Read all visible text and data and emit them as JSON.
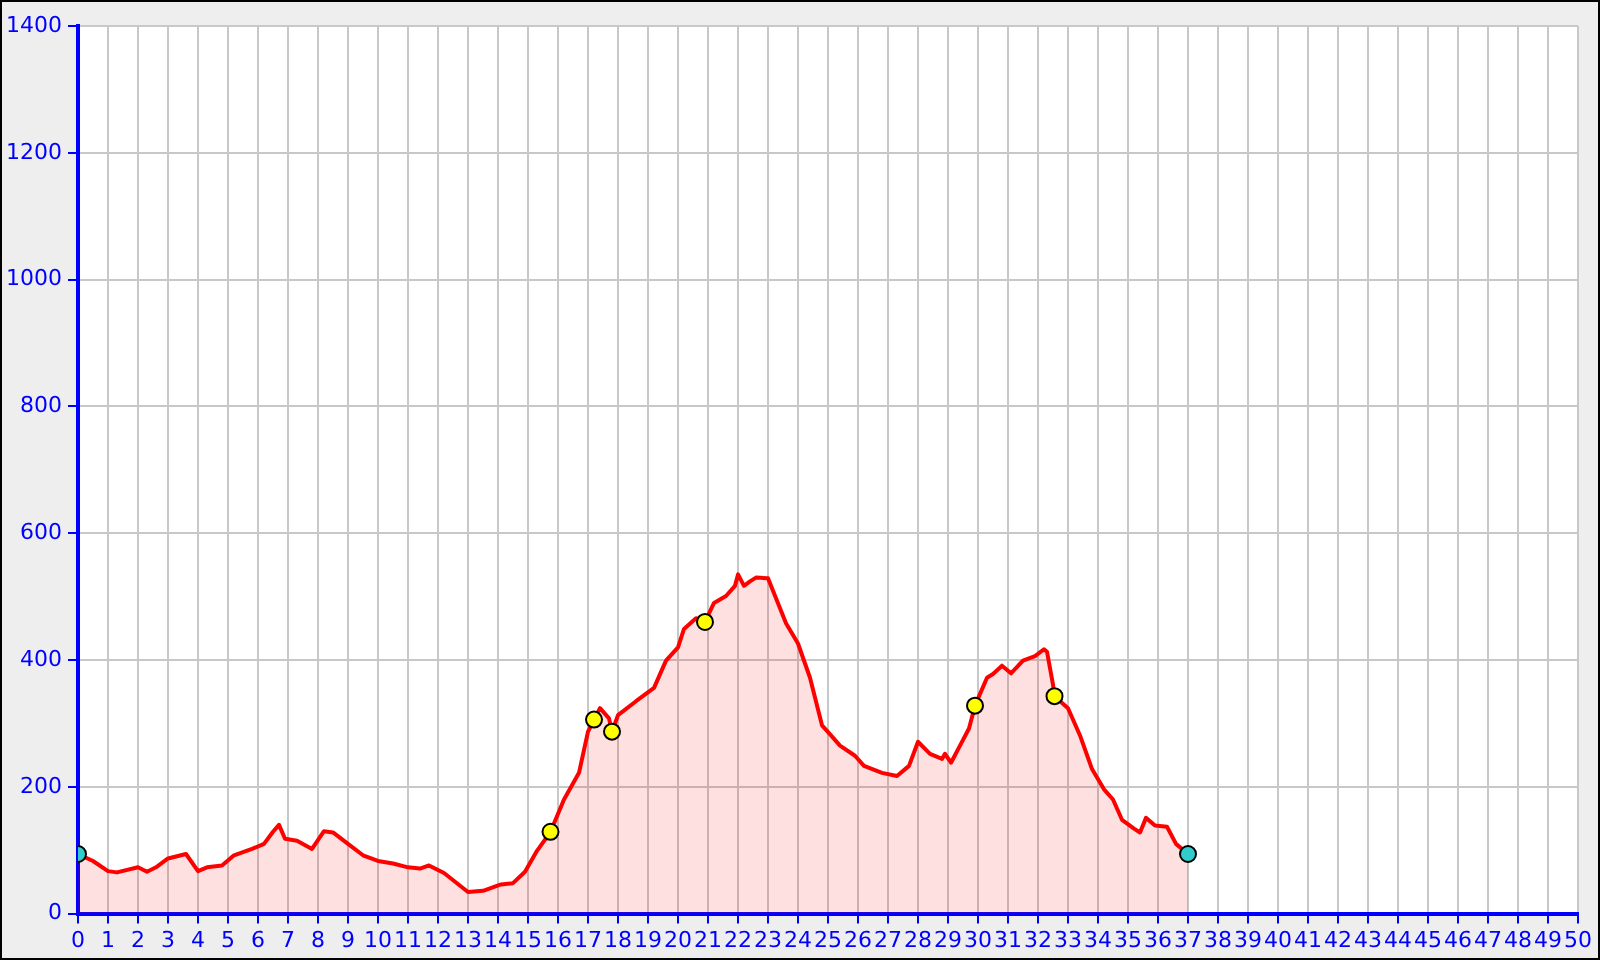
{
  "chart_data": {
    "type": "area",
    "xlim": [
      0,
      50
    ],
    "xticks": [
      0,
      1,
      2,
      3,
      4,
      5,
      6,
      7,
      8,
      9,
      10,
      11,
      12,
      13,
      14,
      15,
      16,
      17,
      18,
      19,
      20,
      21,
      22,
      23,
      24,
      25,
      26,
      27,
      28,
      29,
      30,
      31,
      32,
      33,
      34,
      35,
      36,
      37,
      38,
      39,
      40,
      41,
      42,
      43,
      44,
      45,
      46,
      47,
      48,
      49,
      50
    ],
    "ylim": [
      0,
      1400
    ],
    "yticks": [
      0,
      200,
      400,
      600,
      800,
      1000,
      1200,
      1400
    ],
    "grid": true,
    "legend": false,
    "series": [
      {
        "color": "#ff0000",
        "x": [
          0,
          0.5,
          1,
          1.3,
          2,
          2.3,
          2.6,
          3,
          3.6,
          4,
          4.3,
          4.8,
          5.2,
          5.8,
          6.2,
          6.5,
          6.7,
          6.9,
          7.3,
          7.8,
          8.2,
          8.5,
          9,
          9.5,
          10,
          10.5,
          11,
          11.4,
          11.7,
          12.2,
          12.6,
          13,
          13.5,
          14.1,
          14.5,
          14.9,
          15.3,
          15.75,
          16.2,
          16.7,
          17,
          17.2,
          17.4,
          17.7,
          17.8,
          18,
          18.6,
          19.2,
          19.6,
          20,
          20.2,
          20.6,
          20.9,
          21.2,
          21.6,
          21.9,
          22,
          22.2,
          22.4,
          22.6,
          23,
          23.6,
          24,
          24.4,
          24.8,
          25.1,
          25.4,
          25.9,
          26.2,
          26.8,
          27.3,
          27.7,
          28,
          28.4,
          28.8,
          28.9,
          29.1,
          29.4,
          29.7,
          29.9,
          30.3,
          30.5,
          30.8,
          31.1,
          31.5,
          31.9,
          32.2,
          32.3,
          32.5,
          32.55,
          33,
          33.4,
          33.8,
          34.2,
          34.5,
          34.8,
          35.2,
          35.4,
          35.6,
          35.9,
          36.3,
          36.6,
          37
        ],
        "values": [
          94,
          83,
          67,
          65,
          73,
          66,
          73,
          87,
          94,
          67,
          73,
          76,
          92,
          102,
          110,
          129,
          140,
          118,
          115,
          102,
          130,
          128,
          110,
          92,
          83,
          79,
          73,
          71,
          76,
          64,
          49,
          34,
          36,
          46,
          48,
          66,
          99,
          129,
          180,
          222,
          287,
          306,
          324,
          308,
          287,
          313,
          335,
          356,
          399,
          420,
          449,
          466,
          460,
          490,
          501,
          517,
          535,
          517,
          524,
          530,
          529,
          458,
          426,
          372,
          297,
          281,
          265,
          249,
          233,
          222,
          217,
          233,
          271,
          252,
          244,
          252,
          238,
          265,
          292,
          328,
          372,
          378,
          391,
          379,
          399,
          406,
          417,
          413,
          361,
          343,
          324,
          281,
          228,
          196,
          180,
          148,
          134,
          128,
          151,
          139,
          137,
          110,
          94
        ]
      },
      {
        "type": "scatter",
        "marker": "circle",
        "x": [
          0,
          15.75,
          17.2,
          17.8,
          20.9,
          29.9,
          32.55,
          37
        ],
        "values": [
          94,
          129,
          306,
          287,
          460,
          328,
          343,
          94
        ],
        "colors": [
          "#33cccc",
          "#ffff00",
          "#ffff00",
          "#ffff00",
          "#ffff00",
          "#ffff00",
          "#ffff00",
          "#33cccc"
        ]
      }
    ]
  }
}
